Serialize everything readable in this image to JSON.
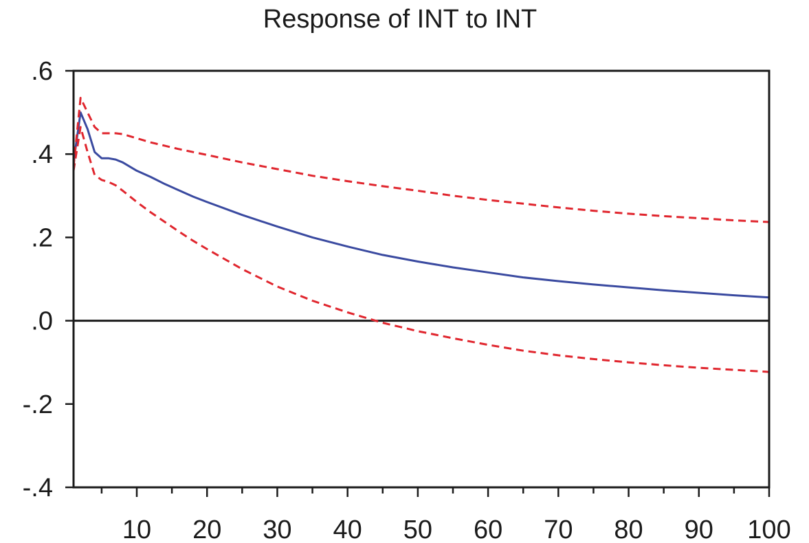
{
  "chart_data": {
    "type": "line",
    "title": "Response of INT to INT",
    "xlabel": "",
    "ylabel": "",
    "xlim": [
      1,
      100
    ],
    "ylim": [
      -0.4,
      0.6
    ],
    "x_ticks": [
      10,
      20,
      30,
      40,
      50,
      60,
      70,
      80,
      90,
      100
    ],
    "x_tick_labels": [
      "10",
      "20",
      "30",
      "40",
      "50",
      "60",
      "70",
      "80",
      "90",
      "100"
    ],
    "y_ticks": [
      -0.4,
      -0.2,
      0.0,
      0.2,
      0.4,
      0.6
    ],
    "y_tick_labels": [
      "-.4",
      "-.2",
      ".0",
      ".2",
      ".4",
      ".6"
    ],
    "zero_line": true,
    "grid": false,
    "legend": "none",
    "series": [
      {
        "color": "#3a4aa0",
        "dash": "solid",
        "x": [
          1,
          2,
          3,
          4,
          5,
          6,
          7,
          8,
          10,
          12,
          14,
          16,
          18,
          20,
          25,
          30,
          35,
          40,
          45,
          50,
          55,
          60,
          65,
          70,
          75,
          80,
          85,
          90,
          95,
          100
        ],
        "values": [
          0.38,
          0.5,
          0.46,
          0.405,
          0.39,
          0.39,
          0.387,
          0.38,
          0.36,
          0.345,
          0.328,
          0.313,
          0.298,
          0.285,
          0.254,
          0.226,
          0.2,
          0.178,
          0.158,
          0.142,
          0.128,
          0.116,
          0.104,
          0.095,
          0.087,
          0.08,
          0.073,
          0.067,
          0.061,
          0.056
        ]
      },
      {
        "color": "#e0262e",
        "dash": "dashed",
        "x": [
          1,
          2,
          3,
          4,
          5,
          6,
          7,
          8,
          10,
          12,
          14,
          16,
          18,
          20,
          25,
          30,
          35,
          40,
          45,
          50,
          55,
          60,
          65,
          70,
          75,
          80,
          85,
          90,
          95,
          100
        ],
        "values": [
          0.37,
          0.535,
          0.5,
          0.465,
          0.45,
          0.45,
          0.45,
          0.448,
          0.438,
          0.428,
          0.42,
          0.412,
          0.405,
          0.398,
          0.38,
          0.364,
          0.348,
          0.335,
          0.323,
          0.312,
          0.3,
          0.29,
          0.281,
          0.272,
          0.264,
          0.257,
          0.251,
          0.246,
          0.241,
          0.237
        ]
      },
      {
        "color": "#e0262e",
        "dash": "dashed",
        "x": [
          1,
          2,
          3,
          4,
          5,
          6,
          7,
          8,
          10,
          12,
          14,
          16,
          18,
          20,
          25,
          30,
          35,
          40,
          45,
          50,
          55,
          60,
          65,
          70,
          75,
          80,
          85,
          90,
          95,
          100
        ],
        "values": [
          0.36,
          0.465,
          0.405,
          0.35,
          0.338,
          0.333,
          0.325,
          0.312,
          0.285,
          0.26,
          0.237,
          0.214,
          0.192,
          0.172,
          0.124,
          0.082,
          0.048,
          0.02,
          -0.005,
          -0.025,
          -0.042,
          -0.058,
          -0.072,
          -0.083,
          -0.092,
          -0.1,
          -0.107,
          -0.113,
          -0.118,
          -0.123
        ]
      }
    ]
  }
}
